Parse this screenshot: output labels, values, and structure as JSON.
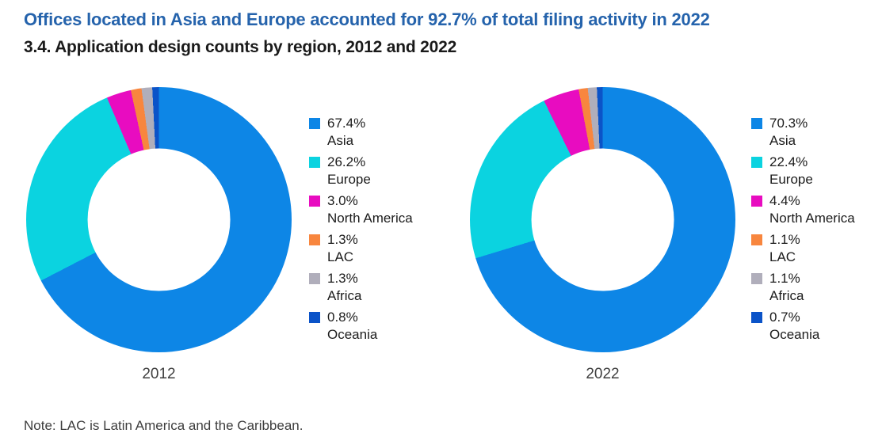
{
  "header": {
    "title": "Offices located in Asia and Europe accounted for 92.7% of total filing activity in 2022",
    "subtitle": "3.4. Application design counts by region, 2012 and 2022"
  },
  "colors": {
    "title_accent": "#2563ac",
    "slices": [
      "#0d86e6",
      "#0bd3e0",
      "#e80cc0",
      "#f8863e",
      "#b0aebb",
      "#0b53c8"
    ]
  },
  "chart_data": [
    {
      "type": "pie",
      "donut": true,
      "title": "2012",
      "categories": [
        "Asia",
        "Europe",
        "North America",
        "LAC",
        "Africa",
        "Oceania"
      ],
      "values": [
        67.4,
        26.2,
        3.0,
        1.3,
        1.3,
        0.8
      ],
      "labels": [
        "67.4%",
        "26.2%",
        "3.0%",
        "1.3%",
        "1.3%",
        "0.8%"
      ],
      "unit": "%",
      "start_angle_deg": 0,
      "direction": "clockwise",
      "inner_radius_ratio": 0.54,
      "legend_position": "right"
    },
    {
      "type": "pie",
      "donut": true,
      "title": "2022",
      "categories": [
        "Asia",
        "Europe",
        "North America",
        "LAC",
        "Africa",
        "Oceania"
      ],
      "values": [
        70.3,
        22.4,
        4.4,
        1.1,
        1.1,
        0.7
      ],
      "labels": [
        "70.3%",
        "22.4%",
        "4.4%",
        "1.1%",
        "1.1%",
        "0.7%"
      ],
      "unit": "%",
      "start_angle_deg": 0,
      "direction": "clockwise",
      "inner_radius_ratio": 0.54,
      "legend_position": "right"
    }
  ],
  "note": "Note: LAC is Latin America and the Caribbean."
}
